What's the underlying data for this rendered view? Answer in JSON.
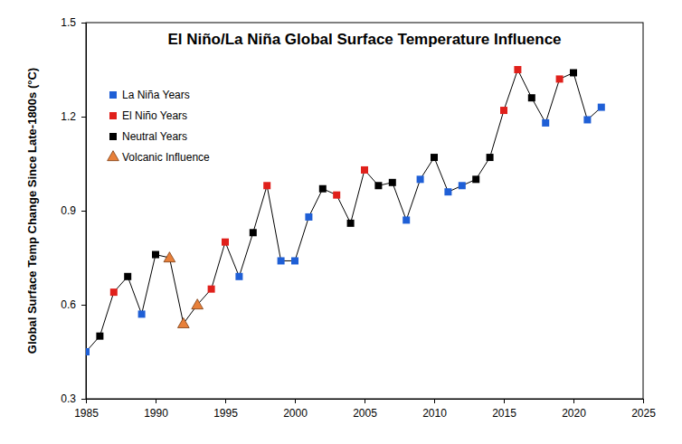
{
  "chart_data": {
    "type": "line",
    "title": "El Niño/La Niña Global Surface Temperature Influence",
    "y_label": "Global Surface Temp Change Since Late-1800s (°C)",
    "x": [
      1985,
      1986,
      1987,
      1988,
      1989,
      1990,
      1991,
      1992,
      1993,
      1994,
      1995,
      1996,
      1997,
      1998,
      1999,
      2000,
      2001,
      2002,
      2003,
      2004,
      2005,
      2006,
      2007,
      2008,
      2009,
      2010,
      2011,
      2012,
      2013,
      2014,
      2015,
      2016,
      2017,
      2018,
      2019,
      2020,
      2021,
      2022
    ],
    "values": [
      0.45,
      0.5,
      0.64,
      0.69,
      0.57,
      0.76,
      0.75,
      0.54,
      0.6,
      0.65,
      0.8,
      0.69,
      0.83,
      0.98,
      0.74,
      0.74,
      0.88,
      0.97,
      0.95,
      0.86,
      1.03,
      0.98,
      0.99,
      0.87,
      1.0,
      1.07,
      0.96,
      0.98,
      1.0,
      1.07,
      1.22,
      1.35,
      1.26,
      1.18,
      1.32,
      1.34,
      1.19,
      1.23
    ],
    "color": "#000000",
    "line_style": "solid",
    "series": [
      {
        "name": "La Niña Years",
        "color": "#1f5fd6",
        "marker": "square",
        "type": "scatter",
        "values": [
          0.45,
          null,
          null,
          null,
          0.57,
          null,
          null,
          null,
          null,
          null,
          null,
          0.69,
          null,
          null,
          0.74,
          0.74,
          0.88,
          null,
          null,
          null,
          null,
          null,
          null,
          0.87,
          1.0,
          null,
          0.96,
          0.98,
          null,
          null,
          null,
          null,
          null,
          1.18,
          null,
          null,
          1.19,
          1.23
        ]
      },
      {
        "name": "El Niño Years",
        "color": "#e0201b",
        "marker": "square",
        "type": "scatter",
        "values": [
          null,
          null,
          0.64,
          null,
          null,
          null,
          null,
          null,
          null,
          0.65,
          0.8,
          null,
          null,
          0.98,
          null,
          null,
          null,
          null,
          0.95,
          null,
          1.03,
          null,
          null,
          null,
          null,
          null,
          null,
          null,
          null,
          null,
          1.22,
          1.35,
          null,
          null,
          1.32,
          null,
          null,
          null
        ]
      },
      {
        "name": "Neutral Years",
        "color": "#000000",
        "marker": "square",
        "type": "scatter",
        "values": [
          null,
          0.5,
          null,
          0.69,
          null,
          0.76,
          null,
          null,
          null,
          null,
          null,
          null,
          0.83,
          null,
          null,
          null,
          null,
          0.97,
          null,
          0.86,
          null,
          0.98,
          0.99,
          null,
          null,
          1.07,
          null,
          null,
          1.0,
          1.07,
          null,
          null,
          1.26,
          null,
          null,
          1.34,
          null,
          null
        ]
      },
      {
        "name": "Volcanic Influence",
        "color": "#e8803a",
        "marker": "triangle",
        "type": "scatter",
        "values": [
          null,
          null,
          null,
          null,
          null,
          null,
          0.75,
          0.54,
          0.6,
          null,
          null,
          null,
          null,
          null,
          null,
          null,
          null,
          null,
          null,
          null,
          null,
          null,
          null,
          null,
          null,
          null,
          null,
          null,
          null,
          null,
          null,
          null,
          null,
          null,
          null,
          null,
          null,
          null
        ]
      }
    ],
    "xlim": [
      1985,
      2025
    ],
    "xticks": [
      1985,
      1990,
      1995,
      2000,
      2005,
      2010,
      2015,
      2020,
      2025
    ],
    "ylim": [
      0.3,
      1.5
    ],
    "yticks": [
      0.3,
      0.6,
      0.9,
      1.2,
      1.5
    ],
    "grid": false,
    "legend": "upper left"
  }
}
